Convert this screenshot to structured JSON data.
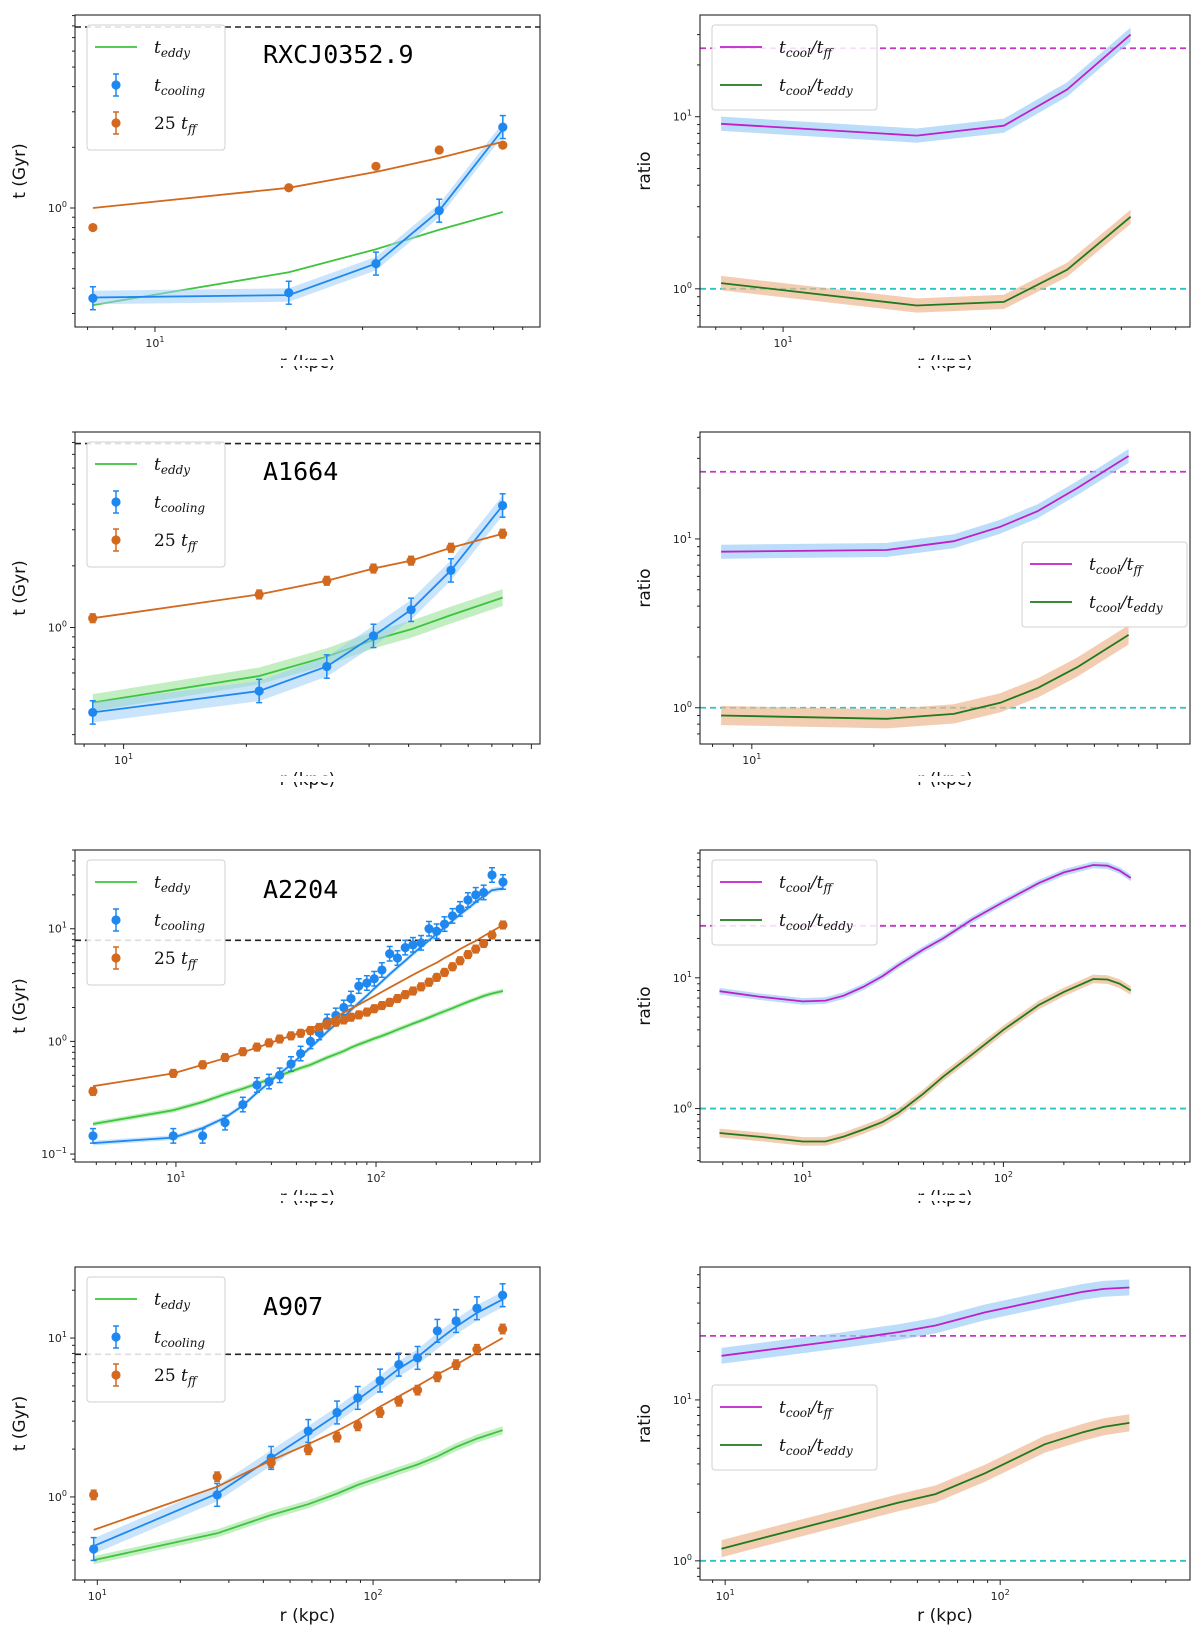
{
  "figure": {
    "colors": {
      "t_eddy": "#3ec43e",
      "t_eddy_band": "#8fe08f",
      "t_cooling": "#1e88f0",
      "t_cooling_band": "#9ecff8",
      "tff": "#d2691e",
      "ratio_ff": "#c020c8",
      "ratio_eddy": "#1e7a1e",
      "ratio_ff_band": "#9ecff8",
      "ratio_eddy_band": "#eeb890",
      "ref_black": "#222222",
      "ref_magenta": "#c832c8",
      "ref_cyan": "#29c4c4"
    }
  },
  "labels": {
    "time_ylabel": "t (Gyr)",
    "ratio_ylabel": "ratio",
    "xlabel": "r (kpc)",
    "legend_time": [
      {
        "base": "t",
        "sub": "eddy",
        "prefix": ""
      },
      {
        "base": "t",
        "sub": "cooling",
        "prefix": ""
      },
      {
        "base": "t",
        "sub": "ff",
        "prefix": "25 "
      }
    ],
    "legend_ratio": [
      {
        "num": "t",
        "num_sub": "cool",
        "den": "t",
        "den_sub": "ff"
      },
      {
        "num": "t",
        "num_sub": "cool",
        "den": "t",
        "den_sub": "eddy"
      }
    ]
  },
  "chart_data": [
    {
      "type": "line",
      "panel": "time",
      "title": "RXCJ0352.9",
      "xlabel": "r (kpc)",
      "ylabel": "t (Gyr)",
      "xscale": "log",
      "yscale": "log",
      "xlim": [
        6.55,
        76.7
      ],
      "ylim": [
        0.257,
        9.06
      ],
      "xticks": [
        {
          "v": 10,
          "label": "10^1"
        }
      ],
      "yticks": [
        {
          "v": 1,
          "label": "10^0"
        }
      ],
      "legend": "top-left",
      "hline": {
        "y": 7.9,
        "style": "dashed",
        "color": "black"
      },
      "x": [
        7.2,
        20.3,
        32.2,
        45,
        63
      ],
      "series": [
        {
          "name": "t_eddy",
          "kind": "line",
          "values": [
            0.33,
            0.48,
            0.625,
            0.78,
            0.955
          ]
        },
        {
          "name": "t_cooling_fit",
          "kind": "line_band",
          "values": [
            0.36,
            0.37,
            0.53,
            0.97,
            2.45
          ],
          "band_frac": 0.08
        },
        {
          "name": "t_cooling",
          "kind": "errorbar",
          "values": [
            0.357,
            0.38,
            0.53,
            0.97,
            2.52
          ],
          "err_frac": 0.14
        },
        {
          "name": "25 t_ff_fit",
          "kind": "line",
          "values": [
            1.0,
            1.26,
            1.51,
            1.77,
            2.13
          ]
        },
        {
          "name": "25 t_ff",
          "kind": "errorbar",
          "values": [
            0.8,
            1.26,
            1.61,
            1.94,
            2.05
          ],
          "err_frac": 0.03
        }
      ]
    },
    {
      "type": "line",
      "panel": "ratio",
      "title": "",
      "xlabel": "r (kpc)",
      "ylabel": "ratio",
      "xscale": "log",
      "yscale": "log",
      "xlim": [
        6.44,
        86.3
      ],
      "ylim": [
        0.6,
        39
      ],
      "xticks": [
        {
          "v": 10,
          "label": "10^1"
        }
      ],
      "yticks": [
        {
          "v": 1,
          "label": "10^0"
        },
        {
          "v": 10,
          "label": "10^1"
        }
      ],
      "legend": "top-left",
      "hlines": [
        {
          "y": 25,
          "color": "magenta"
        },
        {
          "y": 1,
          "color": "cyan"
        }
      ],
      "x": [
        7.2,
        20.3,
        32.2,
        45,
        63
      ],
      "series": [
        {
          "name": "t_cool/t_ff",
          "values": [
            9.1,
            7.77,
            8.87,
            14.4,
            30
          ],
          "band_frac": 0.1
        },
        {
          "name": "t_cool/t_eddy",
          "values": [
            1.08,
            0.8,
            0.84,
            1.29,
            2.62
          ],
          "band_frac": 0.1
        }
      ]
    },
    {
      "type": "line",
      "panel": "time",
      "title": "A1664",
      "xlabel": "r (kpc)",
      "ylabel": "t (Gyr)",
      "xscale": "log",
      "yscale": "log",
      "xlim": [
        7.6,
        105
      ],
      "ylim": [
        0.27,
        9.0
      ],
      "xticks": [
        {
          "v": 10,
          "label": "10^1"
        }
      ],
      "yticks": [
        {
          "v": 1,
          "label": "10^0"
        }
      ],
      "legend": "top-left",
      "hline": {
        "y": 7.9,
        "style": "dashed",
        "color": "black"
      },
      "x": [
        8.4,
        21.5,
        31.5,
        41,
        50.7,
        63.5,
        85
      ],
      "series": [
        {
          "name": "t_eddy",
          "kind": "line_band",
          "values": [
            0.43,
            0.58,
            0.72,
            0.87,
            0.98,
            1.15,
            1.4
          ],
          "band_frac": 0.1
        },
        {
          "name": "t_cooling_fit",
          "kind": "line_band",
          "values": [
            0.385,
            0.49,
            0.645,
            0.91,
            1.22,
            1.9,
            3.94
          ],
          "band_frac": 0.12
        },
        {
          "name": "t_cooling",
          "kind": "errorbar",
          "values": [
            0.385,
            0.49,
            0.645,
            0.91,
            1.22,
            1.9,
            3.94
          ],
          "err_frac": 0.14
        },
        {
          "name": "25 t_ff_fit",
          "kind": "line",
          "values": [
            1.11,
            1.45,
            1.69,
            1.94,
            2.12,
            2.45,
            2.87
          ]
        },
        {
          "name": "25 t_ff",
          "kind": "errorbar",
          "values": [
            1.11,
            1.45,
            1.69,
            1.94,
            2.12,
            2.45,
            2.87
          ],
          "err_frac": 0.05
        }
      ]
    },
    {
      "type": "line",
      "panel": "ratio",
      "title": "",
      "xlabel": "r (kpc)",
      "ylabel": "ratio",
      "xscale": "log",
      "yscale": "log",
      "xlim": [
        7.45,
        120.5
      ],
      "ylim": [
        0.61,
        43
      ],
      "xticks": [
        {
          "v": 10,
          "label": "10^1"
        }
      ],
      "yticks": [
        {
          "v": 1,
          "label": "10^0"
        },
        {
          "v": 10,
          "label": "10^1"
        }
      ],
      "legend": "center-right",
      "hlines": [
        {
          "y": 25,
          "color": "magenta"
        },
        {
          "y": 1,
          "color": "cyan"
        }
      ],
      "x": [
        8.4,
        21.5,
        31.5,
        41,
        50.7,
        63.5,
        85
      ],
      "series": [
        {
          "name": "t_cool/t_ff",
          "values": [
            8.4,
            8.6,
            9.7,
            11.8,
            14.6,
            20,
            31
          ],
          "band_frac": 0.1
        },
        {
          "name": "t_cool/t_eddy",
          "values": [
            0.9,
            0.86,
            0.92,
            1.07,
            1.31,
            1.74,
            2.7
          ],
          "band_frac": 0.14
        }
      ]
    },
    {
      "type": "line",
      "panel": "time",
      "title": "A2204",
      "xlabel": "r (kpc)",
      "ylabel": "t (Gyr)",
      "xscale": "log",
      "yscale": "log",
      "xlim": [
        3.13,
        660
      ],
      "ylim": [
        0.085,
        50
      ],
      "xticks": [
        {
          "v": 10,
          "label": "10^1"
        },
        {
          "v": 100,
          "label": "10^2"
        }
      ],
      "yticks": [
        {
          "v": 0.1,
          "label": "10^-1"
        },
        {
          "v": 1,
          "label": "10^0"
        },
        {
          "v": 10,
          "label": "10^1"
        }
      ],
      "legend": "top-left",
      "hline": {
        "y": 7.9,
        "style": "dashed",
        "color": "black"
      },
      "x": [
        3.85,
        9.7,
        13.6,
        17.6,
        21.6,
        25.4,
        29.2,
        33,
        37.6,
        42,
        47,
        52,
        57,
        63,
        69,
        75,
        82,
        90,
        98,
        107,
        117,
        128,
        140,
        153,
        168,
        184,
        201,
        220,
        241,
        263,
        288,
        315,
        345,
        380,
        431
      ],
      "series": [
        {
          "name": "t_eddy",
          "kind": "line_band",
          "values": [
            0.185,
            0.245,
            0.29,
            0.34,
            0.38,
            0.42,
            0.46,
            0.5,
            0.54,
            0.58,
            0.62,
            0.67,
            0.72,
            0.77,
            0.82,
            0.88,
            0.94,
            1.0,
            1.06,
            1.12,
            1.19,
            1.27,
            1.35,
            1.44,
            1.53,
            1.63,
            1.74,
            1.85,
            1.97,
            2.1,
            2.24,
            2.38,
            2.53,
            2.66,
            2.8
          ],
          "band_frac": 0.05
        },
        {
          "name": "t_cooling_fit",
          "kind": "line_band",
          "values": [
            0.125,
            0.14,
            0.17,
            0.21,
            0.27,
            0.35,
            0.43,
            0.52,
            0.62,
            0.74,
            0.88,
            1.04,
            1.22,
            1.42,
            1.65,
            1.9,
            2.2,
            2.55,
            2.95,
            3.4,
            3.95,
            4.55,
            5.2,
            6.0,
            6.9,
            7.9,
            9.0,
            10.3,
            11.8,
            13.4,
            15.2,
            17.2,
            19.5,
            22,
            22.8
          ],
          "band_frac": 0.05
        },
        {
          "name": "t_cooling",
          "kind": "errorbar",
          "values": [
            0.145,
            0.145,
            0.145,
            0.19,
            0.275,
            0.41,
            0.44,
            0.5,
            0.63,
            0.78,
            1.0,
            1.2,
            1.5,
            1.7,
            2.0,
            2.4,
            3.1,
            3.3,
            3.6,
            4.3,
            6.0,
            5.5,
            6.8,
            7.2,
            7.5,
            10.0,
            9.5,
            11.0,
            13.0,
            15.0,
            18.0,
            20.0,
            21.0,
            30.0,
            26.0
          ],
          "err_frac": 0.16
        },
        {
          "name": "25 t_ff_fit",
          "kind": "line",
          "values": [
            0.4,
            0.52,
            0.62,
            0.71,
            0.8,
            0.88,
            0.96,
            1.04,
            1.12,
            1.2,
            1.3,
            1.4,
            1.52,
            1.65,
            1.8,
            1.95,
            2.12,
            2.32,
            2.52,
            2.75,
            3.0,
            3.28,
            3.58,
            3.9,
            4.25,
            4.62,
            5.0,
            5.5,
            6.0,
            6.6,
            7.2,
            7.8,
            8.6,
            9.5,
            10.8
          ]
        },
        {
          "name": "25 t_ff",
          "kind": "errorbar",
          "values": [
            0.36,
            0.52,
            0.62,
            0.72,
            0.81,
            0.89,
            0.97,
            1.05,
            1.12,
            1.18,
            1.25,
            1.33,
            1.42,
            1.48,
            1.55,
            1.64,
            1.72,
            1.82,
            1.95,
            2.08,
            2.22,
            2.4,
            2.6,
            2.8,
            3.05,
            3.35,
            3.7,
            4.1,
            4.6,
            5.2,
            5.9,
            6.6,
            7.4,
            8.8,
            10.8
          ],
          "err_frac": 0.08
        }
      ]
    },
    {
      "type": "line",
      "panel": "ratio",
      "title": "",
      "xlabel": "r (kpc)",
      "ylabel": "ratio",
      "xscale": "log",
      "yscale": "log",
      "xlim": [
        3.08,
        850
      ],
      "ylim": [
        0.39,
        95
      ],
      "xticks": [
        {
          "v": 10,
          "label": "10^1"
        },
        {
          "v": 100,
          "label": "10^2"
        }
      ],
      "yticks": [
        {
          "v": 1,
          "label": "10^0"
        },
        {
          "v": 10,
          "label": "10^1"
        }
      ],
      "legend": "top-left",
      "hlines": [
        {
          "y": 25,
          "color": "magenta"
        },
        {
          "y": 1,
          "color": "cyan"
        }
      ],
      "x": [
        3.85,
        6,
        10,
        13,
        16,
        20,
        25,
        30,
        40,
        50,
        70,
        100,
        150,
        200,
        280,
        330,
        380,
        431
      ],
      "series": [
        {
          "name": "t_cool/t_ff",
          "values": [
            7.9,
            7.2,
            6.6,
            6.7,
            7.3,
            8.5,
            10.3,
            12.5,
            16.5,
            20,
            28,
            38,
            53,
            64,
            73,
            72,
            66,
            58
          ],
          "band_frac": 0.06
        },
        {
          "name": "t_cool/t_eddy",
          "values": [
            0.65,
            0.61,
            0.56,
            0.56,
            0.61,
            0.69,
            0.79,
            0.93,
            1.3,
            1.75,
            2.6,
            4.0,
            6.2,
            7.8,
            9.8,
            9.7,
            9.0,
            8.0
          ],
          "band_frac": 0.08
        }
      ]
    },
    {
      "type": "line",
      "panel": "time",
      "title": "A907",
      "xlabel": "r (kpc)",
      "ylabel": "t (Gyr)",
      "xscale": "log",
      "yscale": "log",
      "xlim": [
        8.3,
        403
      ],
      "ylim": [
        0.3,
        28
      ],
      "xticks": [
        {
          "v": 10,
          "label": "10^1"
        },
        {
          "v": 100,
          "label": "10^2"
        }
      ],
      "yticks": [
        {
          "v": 1,
          "label": "10^0"
        },
        {
          "v": 10,
          "label": "10^1"
        }
      ],
      "legend": "top-left",
      "hline": {
        "y": 7.9,
        "style": "dashed",
        "color": "black"
      },
      "x": [
        9.7,
        27.2,
        42.7,
        58.2,
        74,
        88,
        106,
        124,
        145,
        171,
        200,
        238,
        295
      ],
      "series": [
        {
          "name": "t_eddy",
          "kind": "line_band",
          "values": [
            0.4,
            0.59,
            0.77,
            0.9,
            1.05,
            1.19,
            1.33,
            1.46,
            1.6,
            1.8,
            2.06,
            2.33,
            2.63
          ],
          "band_frac": 0.06
        },
        {
          "name": "t_cooling_fit",
          "kind": "line_band",
          "values": [
            0.49,
            1.05,
            1.76,
            2.5,
            3.3,
            4.1,
            5.2,
            6.4,
            7.6,
            9.6,
            11.8,
            14.4,
            17.5
          ],
          "band_frac": 0.12
        },
        {
          "name": "t_cooling",
          "kind": "errorbar",
          "values": [
            0.47,
            1.03,
            1.76,
            2.6,
            3.4,
            4.2,
            5.4,
            6.8,
            7.5,
            11.1,
            12.8,
            15.4,
            18.6
          ],
          "err_frac": 0.18
        },
        {
          "name": "25 t_ff_fit",
          "kind": "line",
          "values": [
            0.62,
            1.16,
            1.7,
            2.15,
            2.6,
            3.05,
            3.7,
            4.3,
            5.0,
            5.9,
            6.8,
            8.1,
            10.0
          ]
        },
        {
          "name": "25 t_ff",
          "kind": "errorbar",
          "values": [
            1.03,
            1.34,
            1.64,
            1.98,
            2.38,
            2.8,
            3.4,
            4.0,
            4.7,
            5.7,
            6.8,
            8.5,
            11.4
          ],
          "err_frac": 0.07
        }
      ]
    },
    {
      "type": "line",
      "panel": "ratio",
      "title": "",
      "xlabel": "r (kpc)",
      "ylabel": "ratio",
      "xscale": "log",
      "yscale": "log",
      "xlim": [
        8.1,
        490
      ],
      "ylim": [
        0.76,
        67
      ],
      "xticks": [
        {
          "v": 10,
          "label": "10^1"
        },
        {
          "v": 100,
          "label": "10^2"
        }
      ],
      "yticks": [
        {
          "v": 1,
          "label": "10^0"
        },
        {
          "v": 10,
          "label": "10^1"
        }
      ],
      "legend": "center-left",
      "hlines": [
        {
          "y": 25,
          "color": "magenta"
        },
        {
          "y": 1,
          "color": "cyan"
        }
      ],
      "x": [
        9.7,
        27.2,
        42.7,
        58.2,
        88,
        145,
        200,
        238,
        295
      ],
      "series": [
        {
          "name": "t_cool/t_ff",
          "values": [
            18.8,
            23.6,
            26.4,
            29,
            35,
            42,
            47,
            49,
            50
          ],
          "band_frac": 0.12
        },
        {
          "name": "t_cool/t_eddy",
          "values": [
            1.19,
            1.88,
            2.3,
            2.6,
            3.5,
            5.3,
            6.3,
            6.8,
            7.2
          ],
          "band_frac": 0.13
        }
      ]
    }
  ]
}
